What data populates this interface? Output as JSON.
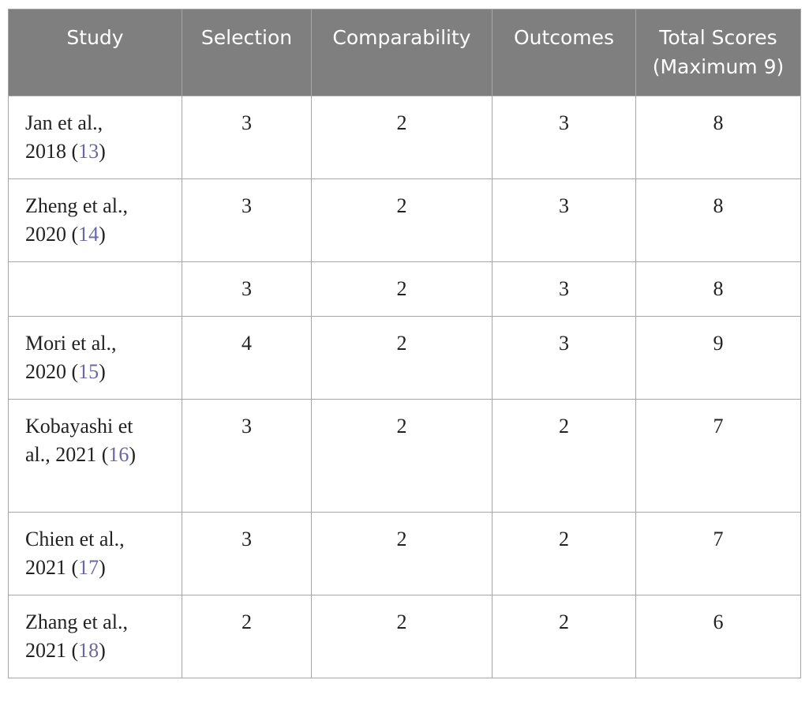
{
  "table": {
    "headers": {
      "study": "Study",
      "selection": "Selection",
      "comparability": "Comparability",
      "outcomes": "Outcomes",
      "total": "Total Scores (Maximum 9)"
    },
    "rows": [
      {
        "study": "Jan et al., 2018 (",
        "ref": "13",
        "close": ")",
        "selection": "3",
        "comparability": "2",
        "outcomes": "3",
        "total": "8"
      },
      {
        "study": "Zheng et al., 2020 (",
        "ref": "14",
        "close": ")",
        "selection": "3",
        "comparability": "2",
        "outcomes": "3",
        "total": "8"
      },
      {
        "study": "",
        "ref": "",
        "close": "",
        "selection": "3",
        "comparability": "2",
        "outcomes": "3",
        "total": "8"
      },
      {
        "study": "Mori et al., 2020 (",
        "ref": "15",
        "close": ")",
        "selection": "4",
        "comparability": "2",
        "outcomes": "3",
        "total": "9"
      },
      {
        "study": "Kobayashi et al., 2021 (",
        "ref": "16",
        "close": ")",
        "selection": "3",
        "comparability": "2",
        "outcomes": "2",
        "total": "7"
      },
      {
        "study": "Chien et al., 2021 (",
        "ref": "17",
        "close": ")",
        "selection": "3",
        "comparability": "2",
        "outcomes": "2",
        "total": "7"
      },
      {
        "study": "Zhang et al., 2021 (",
        "ref": "18",
        "close": ")",
        "selection": "2",
        "comparability": "2",
        "outcomes": "2",
        "total": "6"
      }
    ]
  },
  "colors": {
    "header_bg": "#7f7f7f",
    "header_text": "#ffffff",
    "reference_link": "#6a67a8",
    "border": "#a6a6a6"
  }
}
